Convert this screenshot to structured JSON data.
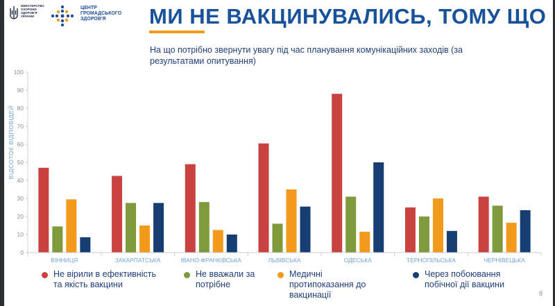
{
  "header": {
    "ministry_text": "МІНІСТЕРСТВО\nОХОРОНИ\nЗДОРОВ'Я\nУКРАЇНИ",
    "chpz_text": "ЦЕНТР\nГРОМАДСЬКОГО\nЗДОРОВ'Я",
    "title": "МИ НЕ ВАКЦИНУВАЛИСЬ, ТОМУ ЩО",
    "subtitle": "На що потрібно звернути увагу під час планування комунікаційних заходів (за результатами опитування)"
  },
  "colors": {
    "red": "#c9423f",
    "green": "#7f9a3b",
    "orange": "#f39a1c",
    "navy": "#173e73",
    "title": "#17529b"
  },
  "chart_data": {
    "type": "bar",
    "ylabel": "ВІДСОТОК ВІДПОВІДЕЙ",
    "ylim": [
      0,
      100
    ],
    "yticks": [
      0,
      10,
      20,
      30,
      40,
      50,
      60,
      70,
      80,
      90,
      100
    ],
    "categories": [
      "ВІННИЦЯ",
      "ЗАКАРПАТСЬКА",
      "ІВАНО-ФРАНКІВСЬКА",
      "ЛЬВІВСЬКА",
      "ОДЕСЬКА",
      "ТЕРНОПІЛЬСЬКА",
      "ЧЕРНІВЕЦЬКА"
    ],
    "series": [
      {
        "name": "Не вірили в ефективність та якість вакцини",
        "color": "#c9423f",
        "values": [
          47,
          42.5,
          49,
          60.5,
          88,
          25,
          31
        ]
      },
      {
        "name": "Не вважали за потрібне",
        "color": "#7f9a3b",
        "values": [
          14.5,
          27.5,
          28,
          16,
          31,
          20,
          26
        ]
      },
      {
        "name": "Медичні протипоказання до вакцинації",
        "color": "#f39a1c",
        "values": [
          29.5,
          15,
          12.5,
          35,
          11.5,
          30,
          16.5
        ]
      },
      {
        "name": "Через побоювання побічної дії вакцини",
        "color": "#173e73",
        "values": [
          8.5,
          27.5,
          10,
          25.5,
          50,
          12,
          23.5
        ]
      }
    ],
    "legend_position": "bottom",
    "grid": false
  },
  "page_number": "8"
}
